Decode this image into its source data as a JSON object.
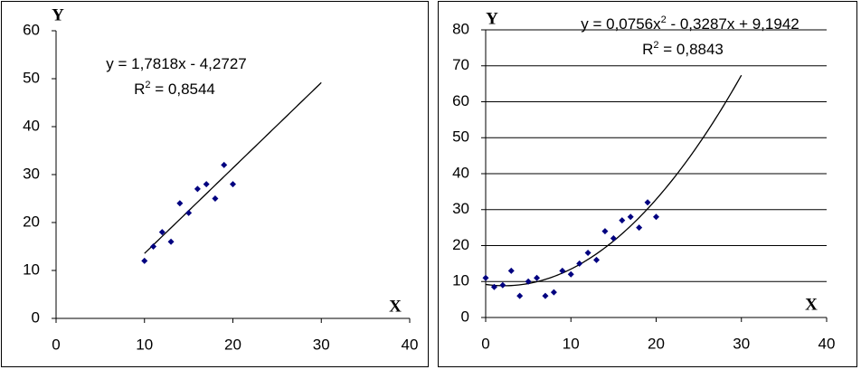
{
  "chart_data": [
    {
      "type": "scatter",
      "y_label": "Y",
      "x_label": "X",
      "x": [
        10,
        11,
        12,
        13,
        14,
        15,
        16,
        17,
        18,
        19,
        20
      ],
      "values": [
        12,
        15,
        18,
        16,
        24,
        22,
        27,
        28,
        25,
        32,
        28
      ],
      "color": "#000080",
      "xlim": [
        0,
        40
      ],
      "xticks": [
        0,
        10,
        20,
        30,
        40
      ],
      "ylim": [
        0,
        60
      ],
      "yticks": [
        0,
        10,
        20,
        30,
        40,
        50,
        60
      ],
      "grid": false,
      "trendline": {
        "coefficients": [
          -4.2727,
          1.7818
        ],
        "x_range": [
          10,
          30
        ],
        "equation_parts": [
          "y = 1,7818x - 4,2727"
        ],
        "r2_parts": [
          "R",
          "2",
          " = 0,8544"
        ]
      }
    },
    {
      "type": "scatter",
      "y_label": "Y",
      "x_label": "X",
      "x": [
        0,
        1,
        2,
        3,
        4,
        5,
        6,
        7,
        8,
        9,
        10,
        11,
        12,
        13,
        14,
        15,
        16,
        17,
        18,
        19,
        20
      ],
      "values": [
        11,
        8.5,
        9,
        13,
        6,
        10,
        11,
        6,
        7,
        13,
        12,
        15,
        18,
        16,
        24,
        22,
        27,
        28,
        25,
        32,
        28
      ],
      "color": "#000080",
      "xlim": [
        0,
        40
      ],
      "xticks": [
        0,
        10,
        20,
        30,
        40
      ],
      "ylim": [
        0,
        80
      ],
      "yticks": [
        0,
        10,
        20,
        30,
        40,
        50,
        60,
        70,
        80
      ],
      "grid": true,
      "trendline": {
        "coefficients": [
          9.1942,
          -0.3287,
          0.0756
        ],
        "x_range": [
          0,
          30
        ],
        "equation_parts": [
          "y = 0,0756x",
          "2",
          " - 0,3287x + 9,1942"
        ],
        "r2_parts": [
          "R",
          "2",
          " = 0,8843"
        ]
      }
    }
  ]
}
